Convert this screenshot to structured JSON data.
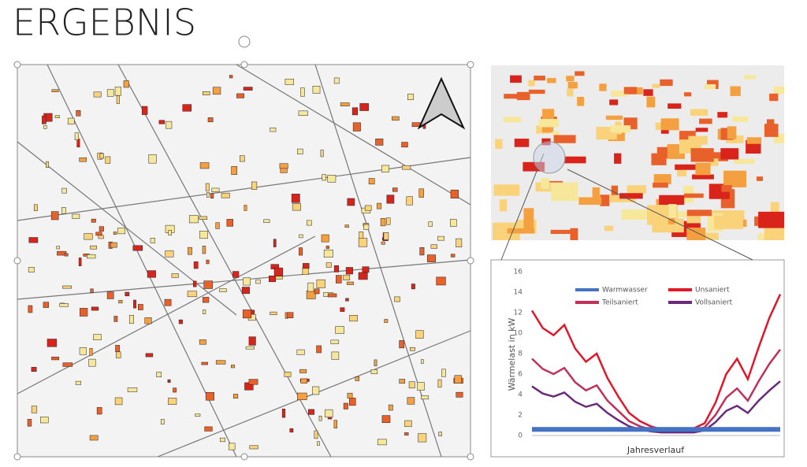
{
  "slide": {
    "title": "ERGEBNIS"
  },
  "chart_data": {
    "type": "line",
    "ylabel": "Wärmelast in kW",
    "xlabel": "Jahresverlauf",
    "categories": [
      null,
      null,
      null,
      null,
      null,
      null,
      null,
      null,
      null,
      null,
      null,
      null,
      null,
      null,
      null,
      null,
      null,
      null,
      null,
      null,
      null,
      null,
      null,
      null
    ],
    "ylim": [
      0,
      16
    ],
    "yticks": [
      0,
      2,
      4,
      6,
      8,
      10,
      12,
      14,
      16
    ],
    "grid": false,
    "series": [
      {
        "name": "Warmwasser",
        "color": "#4472c4",
        "values": [
          0.6,
          0.6,
          0.6,
          0.6,
          0.6,
          0.6,
          0.6,
          0.6,
          0.6,
          0.6,
          0.6,
          0.6,
          0.6,
          0.6,
          0.6,
          0.6,
          0.6,
          0.6,
          0.6,
          0.6,
          0.6,
          0.6,
          0.6,
          0.6
        ]
      },
      {
        "name": "Unsaniert",
        "color": "#e0182a",
        "values": [
          12.2,
          10.5,
          9.8,
          10.8,
          8.5,
          7.2,
          8.0,
          5.6,
          3.8,
          2.2,
          1.4,
          0.9,
          0.6,
          0.5,
          0.5,
          0.7,
          1.2,
          3.2,
          6.0,
          7.5,
          5.5,
          8.6,
          11.5,
          13.8
        ]
      },
      {
        "name": "Teilsaniert",
        "color": "#c2305a",
        "values": [
          7.5,
          6.5,
          6.0,
          6.6,
          5.2,
          4.4,
          4.9,
          3.4,
          2.4,
          1.4,
          0.9,
          0.6,
          0.4,
          0.4,
          0.4,
          0.5,
          0.8,
          2.0,
          3.7,
          4.6,
          3.4,
          5.3,
          7.0,
          8.4
        ]
      },
      {
        "name": "Vollsaniert",
        "color": "#6a2a7a",
        "values": [
          4.8,
          4.1,
          3.8,
          4.2,
          3.3,
          2.8,
          3.1,
          2.2,
          1.5,
          0.9,
          0.6,
          0.4,
          0.3,
          0.3,
          0.3,
          0.3,
          0.5,
          1.3,
          2.4,
          2.9,
          2.2,
          3.4,
          4.4,
          5.3
        ]
      }
    ]
  }
}
